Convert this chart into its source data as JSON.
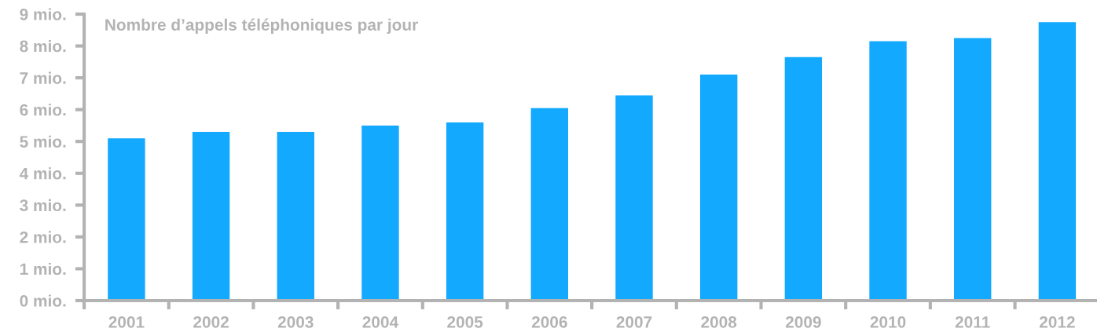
{
  "chart_data": {
    "type": "bar",
    "title": "Nombre d’appels téléphoniques par jour",
    "categories": [
      "2001",
      "2002",
      "2003",
      "2004",
      "2005",
      "2006",
      "2007",
      "2008",
      "2009",
      "2010",
      "2011",
      "2012"
    ],
    "values": [
      5.1,
      5.3,
      5.3,
      5.5,
      5.6,
      6.05,
      6.45,
      7.1,
      7.65,
      8.15,
      8.25,
      8.75
    ],
    "color": "#12a9ff",
    "ylim": [
      0,
      9
    ],
    "yticks": [
      {
        "value": 0,
        "label": "0 mio."
      },
      {
        "value": 1,
        "label": "1 mio."
      },
      {
        "value": 2,
        "label": "2 mio."
      },
      {
        "value": 3,
        "label": "3 mio."
      },
      {
        "value": 4,
        "label": "4 mio."
      },
      {
        "value": 5,
        "label": "5 mio."
      },
      {
        "value": 6,
        "label": "6 mio."
      },
      {
        "value": 7,
        "label": "7 mio."
      },
      {
        "value": 8,
        "label": "8 mio."
      },
      {
        "value": 9,
        "label": "9 mio."
      }
    ],
    "grid": false
  }
}
